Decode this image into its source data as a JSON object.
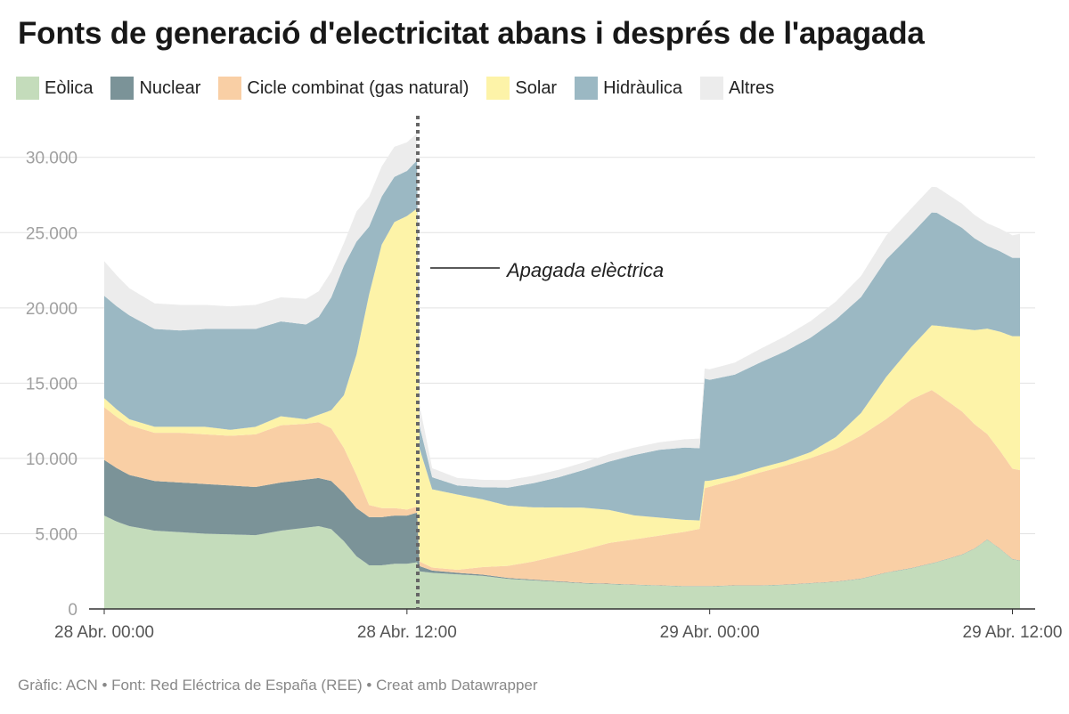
{
  "title": "Fonts de generació d'electricitat abans i després de l'apagada",
  "footer": "Gràfic: ACN • Font: Red Eléctrica de España (REE) • Creat amb Datawrapper",
  "chart_data": {
    "type": "area",
    "stacked": true,
    "x_unit": "hours since 28 Abr. 00:00",
    "xlim": [
      0,
      36
    ],
    "ylim": [
      0,
      33000
    ],
    "xticks": [
      {
        "x": 0,
        "label": "28 Abr. 00:00"
      },
      {
        "x": 12,
        "label": "28 Abr. 12:00"
      },
      {
        "x": 24,
        "label": "29 Abr. 00:00"
      },
      {
        "x": 36,
        "label": "29 Abr. 12:00"
      }
    ],
    "yticks": [
      {
        "y": 0,
        "label": "0"
      },
      {
        "y": 5000,
        "label": "5.000"
      },
      {
        "y": 10000,
        "label": "10.000"
      },
      {
        "y": 15000,
        "label": "15.000"
      },
      {
        "y": 20000,
        "label": "20.000"
      },
      {
        "y": 25000,
        "label": "25.000"
      },
      {
        "y": 30000,
        "label": "30.000"
      }
    ],
    "grid": true,
    "annotation": {
      "x": 12.5,
      "label": "Apagada elèctrica"
    },
    "series": [
      {
        "name": "Eòlica",
        "color": "#c4dcbb",
        "points": [
          [
            0,
            6200
          ],
          [
            0.5,
            5800
          ],
          [
            1,
            5500
          ],
          [
            2,
            5200
          ],
          [
            3,
            5100
          ],
          [
            4,
            5000
          ],
          [
            5,
            4950
          ],
          [
            6,
            4900
          ],
          [
            7,
            5200
          ],
          [
            8,
            5400
          ],
          [
            8.5,
            5500
          ],
          [
            9,
            5300
          ],
          [
            9.5,
            4500
          ],
          [
            10,
            3500
          ],
          [
            10.5,
            2900
          ],
          [
            11,
            2900
          ],
          [
            11.5,
            3000
          ],
          [
            12,
            3000
          ],
          [
            12.4,
            3100
          ],
          [
            12.5,
            2500
          ],
          [
            13,
            2400
          ],
          [
            14,
            2300
          ],
          [
            15,
            2200
          ],
          [
            16,
            2000
          ],
          [
            17,
            1900
          ],
          [
            18,
            1800
          ],
          [
            19,
            1700
          ],
          [
            20,
            1650
          ],
          [
            21,
            1600
          ],
          [
            22,
            1550
          ],
          [
            23,
            1500
          ],
          [
            24,
            1500
          ],
          [
            25,
            1550
          ],
          [
            26,
            1550
          ],
          [
            27,
            1600
          ],
          [
            28,
            1700
          ],
          [
            29,
            1800
          ],
          [
            30,
            2000
          ],
          [
            31,
            2400
          ],
          [
            32,
            2700
          ],
          [
            33,
            3100
          ],
          [
            34,
            3600
          ],
          [
            34.5,
            4000
          ],
          [
            35,
            4600
          ],
          [
            35.5,
            4000
          ],
          [
            36,
            3300
          ],
          [
            36.3,
            3200
          ]
        ]
      },
      {
        "name": "Nuclear",
        "color": "#7b9398",
        "points": [
          [
            0,
            3700
          ],
          [
            1,
            3400
          ],
          [
            2,
            3300
          ],
          [
            3,
            3300
          ],
          [
            4,
            3300
          ],
          [
            5,
            3250
          ],
          [
            6,
            3200
          ],
          [
            7,
            3200
          ],
          [
            8,
            3200
          ],
          [
            9,
            3200
          ],
          [
            10,
            3200
          ],
          [
            11,
            3200
          ],
          [
            12,
            3200
          ],
          [
            12.4,
            3300
          ],
          [
            12.5,
            350
          ],
          [
            13,
            150
          ],
          [
            14,
            100
          ],
          [
            15,
            80
          ],
          [
            16,
            60
          ],
          [
            17,
            50
          ],
          [
            18,
            40
          ],
          [
            19,
            30
          ],
          [
            20,
            30
          ],
          [
            21,
            20
          ],
          [
            22,
            20
          ],
          [
            23,
            20
          ],
          [
            24,
            20
          ],
          [
            25,
            20
          ],
          [
            26,
            20
          ],
          [
            27,
            20
          ],
          [
            28,
            20
          ],
          [
            29,
            20
          ],
          [
            30,
            20
          ],
          [
            31,
            20
          ],
          [
            32,
            20
          ],
          [
            33,
            20
          ],
          [
            34,
            20
          ],
          [
            35,
            20
          ],
          [
            36,
            20
          ],
          [
            36.3,
            20
          ]
        ]
      },
      {
        "name": "Cicle combinat (gas natural)",
        "color": "#f9cfa5",
        "points": [
          [
            0,
            3500
          ],
          [
            1,
            3300
          ],
          [
            2,
            3200
          ],
          [
            3,
            3300
          ],
          [
            4,
            3300
          ],
          [
            5,
            3300
          ],
          [
            6,
            3500
          ],
          [
            7,
            3800
          ],
          [
            8,
            3700
          ],
          [
            8.5,
            3700
          ],
          [
            9,
            3500
          ],
          [
            9.5,
            3000
          ],
          [
            10,
            2200
          ],
          [
            10.5,
            800
          ],
          [
            11,
            600
          ],
          [
            11.5,
            500
          ],
          [
            12,
            400
          ],
          [
            12.4,
            400
          ],
          [
            12.5,
            300
          ],
          [
            13,
            200
          ],
          [
            14,
            200
          ],
          [
            15,
            500
          ],
          [
            16,
            800
          ],
          [
            17,
            1200
          ],
          [
            18,
            1700
          ],
          [
            19,
            2200
          ],
          [
            20,
            2700
          ],
          [
            21,
            3000
          ],
          [
            22,
            3300
          ],
          [
            23,
            3600
          ],
          [
            23.6,
            3800
          ],
          [
            23.8,
            6500
          ],
          [
            24,
            6600
          ],
          [
            25,
            7000
          ],
          [
            26,
            7500
          ],
          [
            27,
            7900
          ],
          [
            28,
            8300
          ],
          [
            29,
            8800
          ],
          [
            30,
            9500
          ],
          [
            31,
            10200
          ],
          [
            32,
            11200
          ],
          [
            32.8,
            11500
          ],
          [
            33,
            11200
          ],
          [
            34,
            9500
          ],
          [
            35,
            7000
          ],
          [
            36,
            6000
          ],
          [
            36.3,
            6000
          ]
        ]
      },
      {
        "name": "Solar",
        "color": "#fdf3a8",
        "points": [
          [
            0,
            600
          ],
          [
            1,
            400
          ],
          [
            2,
            400
          ],
          [
            3,
            400
          ],
          [
            4,
            500
          ],
          [
            5,
            400
          ],
          [
            6,
            500
          ],
          [
            7,
            600
          ],
          [
            8,
            300
          ],
          [
            8.5,
            500
          ],
          [
            9,
            1200
          ],
          [
            9.5,
            3500
          ],
          [
            10,
            8000
          ],
          [
            10.5,
            14000
          ],
          [
            11,
            17500
          ],
          [
            11.5,
            19000
          ],
          [
            12,
            19500
          ],
          [
            12.4,
            19800
          ],
          [
            12.5,
            7500
          ],
          [
            13,
            5200
          ],
          [
            14,
            5000
          ],
          [
            15,
            4500
          ],
          [
            16,
            4000
          ],
          [
            17,
            3600
          ],
          [
            18,
            3200
          ],
          [
            19,
            2800
          ],
          [
            20,
            2200
          ],
          [
            21,
            1600
          ],
          [
            22,
            1200
          ],
          [
            23,
            800
          ],
          [
            24,
            400
          ],
          [
            25,
            300
          ],
          [
            26,
            300
          ],
          [
            27,
            300
          ],
          [
            28,
            400
          ],
          [
            29,
            800
          ],
          [
            30,
            1500
          ],
          [
            31,
            2800
          ],
          [
            32,
            3500
          ],
          [
            33,
            4500
          ],
          [
            34,
            5500
          ],
          [
            35,
            7000
          ],
          [
            36,
            8800
          ],
          [
            36.3,
            8900
          ]
        ]
      },
      {
        "name": "Hidràulica",
        "color": "#9bb8c3",
        "points": [
          [
            0,
            6800
          ],
          [
            1,
            6900
          ],
          [
            2,
            6500
          ],
          [
            3,
            6400
          ],
          [
            4,
            6500
          ],
          [
            5,
            6700
          ],
          [
            6,
            6500
          ],
          [
            7,
            6300
          ],
          [
            8,
            6300
          ],
          [
            8.5,
            6500
          ],
          [
            9,
            7500
          ],
          [
            9.5,
            8600
          ],
          [
            10,
            7500
          ],
          [
            10.5,
            4500
          ],
          [
            11,
            3200
          ],
          [
            11.5,
            3000
          ],
          [
            12,
            3000
          ],
          [
            12.4,
            3200
          ],
          [
            12.5,
            1500
          ],
          [
            13,
            800
          ],
          [
            14,
            600
          ],
          [
            15,
            800
          ],
          [
            16,
            1200
          ],
          [
            17,
            1600
          ],
          [
            18,
            2000
          ],
          [
            19,
            2500
          ],
          [
            20,
            3200
          ],
          [
            21,
            4000
          ],
          [
            22,
            4500
          ],
          [
            23,
            4800
          ],
          [
            23.6,
            4800
          ],
          [
            23.8,
            6800
          ],
          [
            24,
            6700
          ],
          [
            25,
            6700
          ],
          [
            26,
            7000
          ],
          [
            27,
            7300
          ],
          [
            28,
            7600
          ],
          [
            29,
            7800
          ],
          [
            30,
            7700
          ],
          [
            31,
            7800
          ],
          [
            32,
            7500
          ],
          [
            33,
            7500
          ],
          [
            34,
            6700
          ],
          [
            35,
            5500
          ],
          [
            36,
            5200
          ],
          [
            36.3,
            5200
          ]
        ]
      },
      {
        "name": "Altres",
        "color": "#ececec",
        "points": [
          [
            0,
            2300
          ],
          [
            1,
            1800
          ],
          [
            2,
            1700
          ],
          [
            3,
            1700
          ],
          [
            4,
            1600
          ],
          [
            5,
            1500
          ],
          [
            6,
            1600
          ],
          [
            7,
            1600
          ],
          [
            8,
            1700
          ],
          [
            8.5,
            1700
          ],
          [
            9,
            1700
          ],
          [
            9.5,
            1500
          ],
          [
            10,
            2000
          ],
          [
            10.5,
            2000
          ],
          [
            11,
            2000
          ],
          [
            11.5,
            2000
          ],
          [
            12,
            1900
          ],
          [
            12.4,
            1800
          ],
          [
            12.5,
            1400
          ],
          [
            13,
            600
          ],
          [
            14,
            500
          ],
          [
            15,
            500
          ],
          [
            16,
            500
          ],
          [
            17,
            500
          ],
          [
            18,
            500
          ],
          [
            19,
            500
          ],
          [
            20,
            500
          ],
          [
            21,
            500
          ],
          [
            22,
            500
          ],
          [
            23,
            550
          ],
          [
            24,
            700
          ],
          [
            25,
            800
          ],
          [
            26,
            900
          ],
          [
            27,
            1000
          ],
          [
            28,
            1100
          ],
          [
            29,
            1200
          ],
          [
            30,
            1400
          ],
          [
            31,
            1600
          ],
          [
            32,
            1700
          ],
          [
            33,
            1700
          ],
          [
            34,
            1600
          ],
          [
            35,
            1500
          ],
          [
            36,
            1500
          ],
          [
            36.3,
            1600
          ]
        ]
      }
    ]
  }
}
